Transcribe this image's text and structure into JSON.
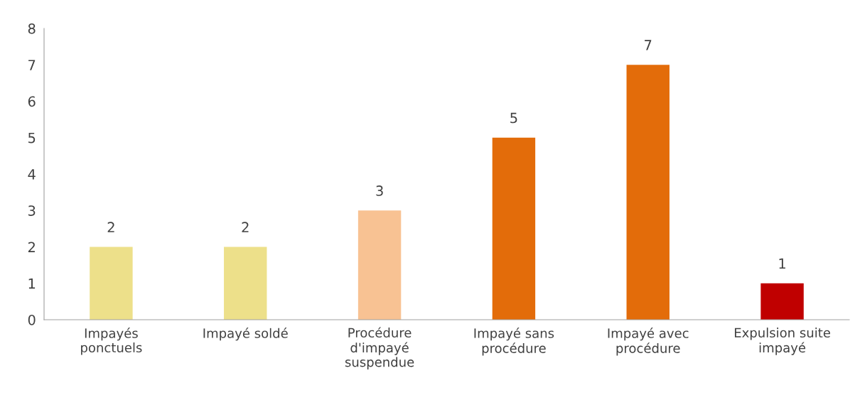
{
  "chart_data": {
    "type": "bar",
    "categories": [
      "Impayés\nponctuels",
      "Impayé soldé",
      "Procédure\nd'impayé\nsuspendue",
      "Impayé sans\nprocédure",
      "Impayé avec\nprocédure",
      "Expulsion suite\nimpayé"
    ],
    "values": [
      2,
      2,
      3,
      5,
      7,
      1
    ],
    "colors": [
      "#ede08a",
      "#ede08a",
      "#f8c293",
      "#e36c0a",
      "#e36c0a",
      "#c00000"
    ],
    "ylim": [
      0,
      8
    ],
    "yticks": [
      0,
      1,
      2,
      3,
      4,
      5,
      6,
      7,
      8
    ],
    "data_labels": true,
    "grid": false,
    "legend": false
  }
}
